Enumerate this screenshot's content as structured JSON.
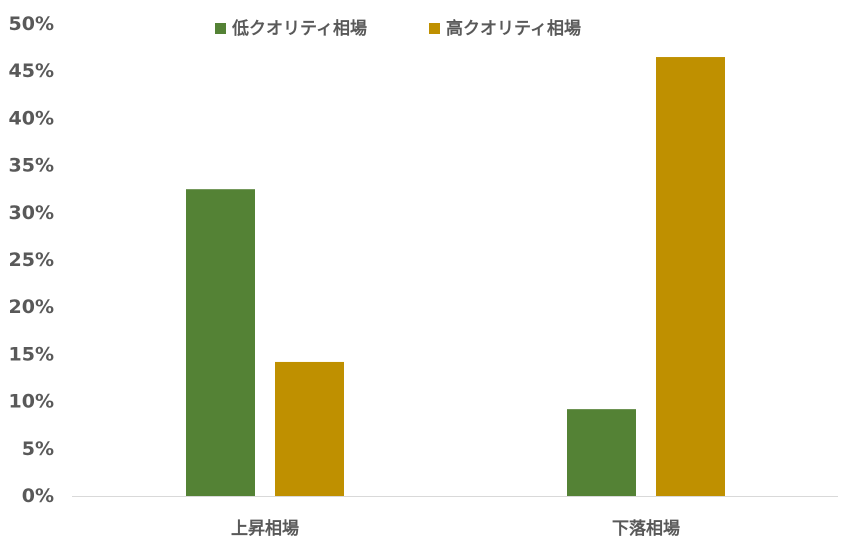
{
  "chart_data": {
    "type": "bar",
    "categories": [
      "上昇相場",
      "下落相場"
    ],
    "series": [
      {
        "name": "低クオリティ相場",
        "color": "#548235",
        "values": [
          32.5,
          9.2
        ]
      },
      {
        "name": "高クオリティ相場",
        "color": "#bf9000",
        "values": [
          14.2,
          46.5
        ]
      }
    ],
    "ylim": [
      0,
      50
    ],
    "yticks": [
      0,
      5,
      10,
      15,
      20,
      25,
      30,
      35,
      40,
      45,
      50
    ],
    "ytick_labels": [
      "0%",
      "5%",
      "10%",
      "15%",
      "20%",
      "25%",
      "30%",
      "35%",
      "40%",
      "45%",
      "50%"
    ],
    "grid": false,
    "legend_position": "top-center",
    "title": "",
    "xlabel": "",
    "ylabel": ""
  }
}
